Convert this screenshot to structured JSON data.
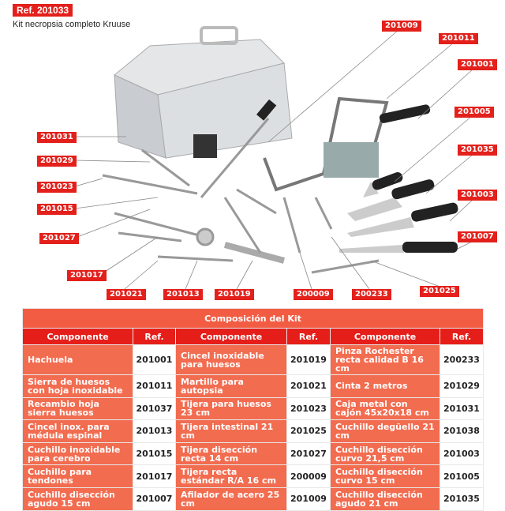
{
  "header": {
    "ref": "Ref. 201033",
    "subtitle": "Kit necropsia completo Kruuse"
  },
  "callouts": [
    "201009",
    "201011",
    "201001",
    "201005",
    "201035",
    "201003",
    "201007",
    "201025",
    "200233",
    "200009",
    "201019",
    "201013",
    "201021",
    "201017",
    "201027",
    "201015",
    "201023",
    "201029",
    "201031"
  ],
  "table": {
    "title": "Composición del Kit",
    "headers": [
      "Componente",
      "Ref.",
      "Componente",
      "Ref.",
      "Componente",
      "Ref."
    ],
    "rows": [
      [
        "Hachuela",
        "201001",
        "Cincel inoxidable para huesos",
        "201019",
        "Pinza Rochester recta calidad B 16 cm",
        "200233"
      ],
      [
        "Sierra de huesos con hoja inoxidable",
        "201011",
        "Martillo para autopsia",
        "201021",
        "Cinta 2 metros",
        "201029"
      ],
      [
        "Recambio hoja sierra huesos",
        "201037",
        "Tijera para huesos 23 cm",
        "201023",
        "Caja metal con cajón 45x20x18 cm",
        "201031"
      ],
      [
        "Cincel inox. para médula espinal",
        "201013",
        "Tijera intestinal 21 cm",
        "201025",
        "Cuchillo degüello 21 cm",
        "201038"
      ],
      [
        "Cuchillo inoxidable para cerebro",
        "201015",
        "Tijera disección recta 14 cm",
        "201027",
        "Cuchillo disección curvo 21,5 cm",
        "201003"
      ],
      [
        "Cuchillo para tendones",
        "201017",
        "Tijera recta estándar R/A 16 cm",
        "200009",
        "Cuchillo disección curvo 15 cm",
        "201005"
      ],
      [
        "Cuchillo disección agudo 15 cm",
        "201007",
        "Afilador de acero 25 cm",
        "201009",
        "Cuchillo disección agudo 21 cm",
        "201035"
      ]
    ]
  },
  "colors": {
    "brand_red": "#e3201b",
    "table_cell": "#f26c50"
  }
}
